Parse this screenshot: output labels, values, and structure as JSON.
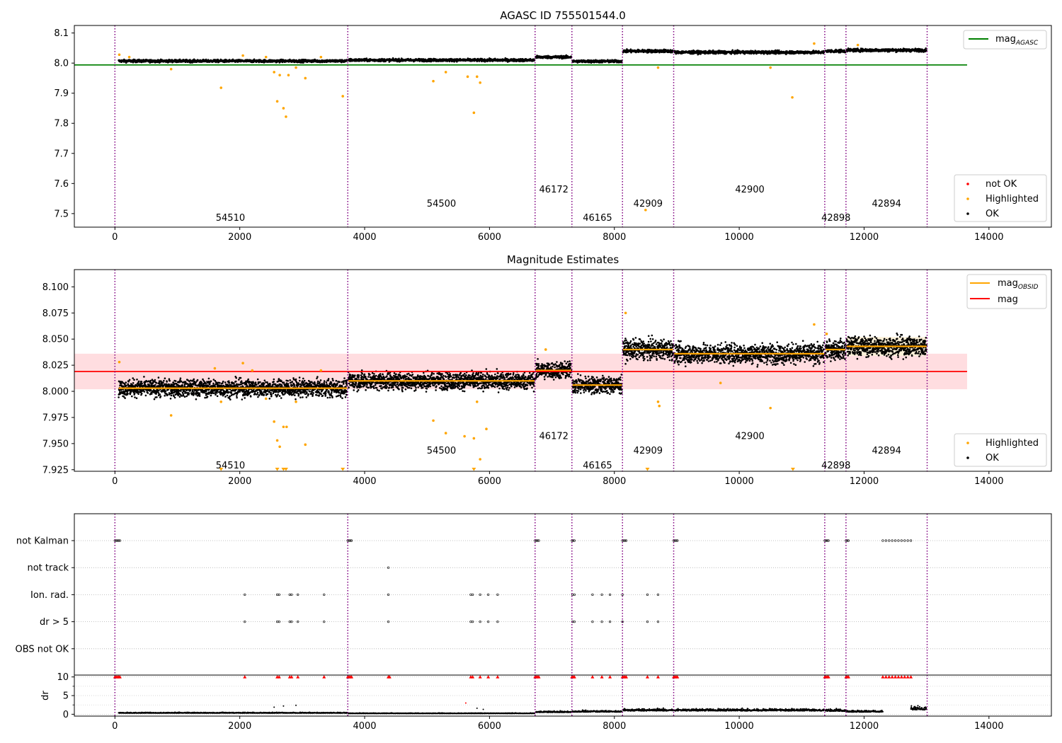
{
  "chart_data": [
    {
      "type": "scatter",
      "title": "AGASC ID 755501544.0",
      "xlabel": "",
      "ylabel": "",
      "xlim": [
        -650,
        15000
      ],
      "ylim": [
        7.455,
        8.125
      ],
      "xticks": [
        0,
        2000,
        4000,
        6000,
        8000,
        10000,
        12000,
        14000
      ],
      "xtick_labels": [
        "0",
        "2000",
        "4000",
        "6000",
        "8000",
        "10000",
        "12000",
        "14000"
      ],
      "yticks": [
        7.5,
        7.6,
        7.7,
        7.8,
        7.9,
        8.0,
        8.1
      ],
      "ytick_labels": [
        "7.5",
        "7.6",
        "7.7",
        "7.8",
        "7.9",
        "8.0",
        "8.1"
      ],
      "obs_boundaries": [
        0,
        3730,
        6730,
        7320,
        8130,
        8950,
        11370,
        11710,
        13010
      ],
      "observations": [
        {
          "obsid": "54510",
          "x0": 60,
          "x1": 3720,
          "level": 8.003,
          "spread": 0.008,
          "label_x": 1850,
          "label_y": 7.485
        },
        {
          "obsid": "54500",
          "x0": 3740,
          "x1": 6720,
          "level": 8.01,
          "spread": 0.008,
          "label_x": 5230,
          "label_y": 7.533
        },
        {
          "obsid": "46172",
          "x0": 6740,
          "x1": 7310,
          "level": 8.02,
          "spread": 0.008,
          "label_x": 7030,
          "label_y": 7.58
        },
        {
          "obsid": "46165",
          "x0": 7330,
          "x1": 8120,
          "level": 8.006,
          "spread": 0.008,
          "label_x": 7730,
          "label_y": 7.485
        },
        {
          "obsid": "42909",
          "x0": 8140,
          "x1": 8940,
          "level": 8.04,
          "spread": 0.009,
          "label_x": 8540,
          "label_y": 7.533
        },
        {
          "obsid": "42900",
          "x0": 8960,
          "x1": 11360,
          "level": 8.036,
          "spread": 0.009,
          "label_x": 10170,
          "label_y": 7.58
        },
        {
          "obsid": "42898",
          "x0": 11380,
          "x1": 11700,
          "level": 8.04,
          "spread": 0.009,
          "label_x": 11550,
          "label_y": 7.485
        },
        {
          "obsid": "42894",
          "x0": 11720,
          "x1": 13000,
          "level": 8.043,
          "spread": 0.009,
          "label_x": 12360,
          "label_y": 7.533
        }
      ],
      "series": [
        {
          "name": "mag_AGASC",
          "type": "line",
          "color": "#008000",
          "x": [
            -650,
            13650
          ],
          "y": [
            7.994,
            7.994
          ]
        },
        {
          "name": "not OK",
          "type": "scatter",
          "color": "#ff0000",
          "x": [],
          "y": []
        },
        {
          "name": "Highlighted",
          "type": "scatter",
          "color": "#ffa500",
          "x": [
            70,
            230,
            900,
            1700,
            2050,
            2420,
            2550,
            2600,
            2640,
            2700,
            2740,
            2780,
            2900,
            3050,
            3300,
            3650,
            5100,
            5300,
            5650,
            5750,
            5800,
            5850,
            8500,
            8700,
            10500,
            10850,
            11900,
            11200
          ],
          "y": [
            8.028,
            8.02,
            7.98,
            7.918,
            8.025,
            8.02,
            7.97,
            7.873,
            7.96,
            7.85,
            7.822,
            7.96,
            7.985,
            7.95,
            8.02,
            7.89,
            7.94,
            7.97,
            7.955,
            7.835,
            7.955,
            7.935,
            7.512,
            7.985,
            7.985,
            7.886,
            8.06,
            8.065
          ]
        },
        {
          "name": "OK",
          "type": "scatter",
          "color": "#000000",
          "x": [],
          "y": []
        }
      ],
      "legend_top": [
        {
          "label": "mag",
          "sub": "AGASC",
          "color": "#008000"
        }
      ],
      "legend_bottom": [
        {
          "label": "not OK",
          "color": "#ff0000"
        },
        {
          "label": "Highlighted",
          "color": "#ffa500"
        },
        {
          "label": "OK",
          "color": "#000000"
        }
      ],
      "legend_top_position": "upper right",
      "legend_bottom_position": "lower right"
    },
    {
      "type": "scatter",
      "title": "Magnitude Estimates",
      "xlabel": "",
      "ylabel": "",
      "xlim": [
        -650,
        15000
      ],
      "ylim": [
        7.9235,
        8.1165
      ],
      "xticks": [
        0,
        2000,
        4000,
        6000,
        8000,
        10000,
        12000,
        14000
      ],
      "xtick_labels": [
        "0",
        "2000",
        "4000",
        "6000",
        "8000",
        "10000",
        "12000",
        "14000"
      ],
      "yticks": [
        7.925,
        7.95,
        7.975,
        8.0,
        8.025,
        8.05,
        8.075,
        8.1
      ],
      "ytick_labels": [
        "7.925",
        "7.950",
        "7.975",
        "8.000",
        "8.025",
        "8.050",
        "8.075",
        "8.100"
      ],
      "obs_label_y": {
        "54510": 7.929,
        "54500": 7.943,
        "46172": 7.957,
        "46165": 7.929,
        "42909": 7.943,
        "42900": 7.957,
        "42898": 7.929,
        "42894": 7.943
      },
      "mag": {
        "value": 8.019,
        "x0": -650,
        "x1": 13650,
        "band": [
          8.002,
          8.036
        ],
        "color": "#ff0000",
        "band_color": "#ffdde0"
      },
      "mag_obsid_bands": [
        {
          "x0": 11720,
          "x1": 13000,
          "band": [
            8.034,
            8.052
          ],
          "color": "#fbf0d8"
        }
      ],
      "highlighted": {
        "color": "#ffa500",
        "x": [
          70,
          900,
          1600,
          1700,
          2050,
          2200,
          2420,
          2550,
          2600,
          2640,
          2700,
          2750,
          2900,
          3050,
          3300,
          5100,
          5300,
          5600,
          5750,
          5800,
          5850,
          5950,
          6900,
          8180,
          8700,
          8720,
          9700,
          10500,
          11200,
          11400
        ],
        "y": [
          8.028,
          7.977,
          8.022,
          7.99,
          8.027,
          8.02,
          7.993,
          7.971,
          7.953,
          7.947,
          7.966,
          7.966,
          7.99,
          7.949,
          8.02,
          7.972,
          7.96,
          7.957,
          7.955,
          7.99,
          7.935,
          7.964,
          8.04,
          8.075,
          7.99,
          7.986,
          8.008,
          7.984,
          8.064,
          8.055
        ]
      },
      "clipped_markers": {
        "color": "#ffa500",
        "x": [
          1700,
          2600,
          2700,
          2740,
          3650,
          5750,
          8530,
          10860
        ]
      },
      "legend_top": [
        {
          "label": "mag",
          "sub": "OBSID",
          "color": "#ffa500"
        },
        {
          "label": "mag",
          "sub": "",
          "color": "#ff0000"
        }
      ],
      "legend_bottom": [
        {
          "label": "Highlighted",
          "color": "#ffa500"
        },
        {
          "label": "OK",
          "color": "#000000"
        }
      ],
      "legend_top_position": "upper right",
      "legend_bottom_position": "lower right"
    },
    {
      "type": "scatter",
      "title": "",
      "xlabel": "",
      "ylabel": "",
      "xlim": [
        -650,
        15000
      ],
      "flag_rows": [
        "not Kalman",
        "not track",
        "Ion. rad.",
        "dr > 5",
        "OBS not OK"
      ],
      "flag_events": [
        {
          "row": "not Kalman",
          "x": [
            0,
            20,
            40,
            60,
            80,
            3730,
            3750,
            3770,
            3790,
            6730,
            6750,
            6770,
            6790,
            7320,
            7340,
            7360,
            8130,
            8150,
            8170,
            8190,
            8950,
            8970,
            8990,
            9010,
            11370,
            11390,
            11410,
            11430,
            11710,
            11730,
            11750,
            12300,
            12350,
            12400,
            12450,
            12500,
            12550,
            12600,
            12650,
            12700,
            12750
          ]
        },
        {
          "row": "not track",
          "x": [
            4380
          ]
        },
        {
          "row": "Ion. rad.",
          "x": [
            2080,
            2600,
            2630,
            2800,
            2830,
            2930,
            3350,
            4380,
            5700,
            5730,
            5850,
            5980,
            6130,
            7330,
            7360,
            7650,
            7800,
            7930,
            8130,
            8530,
            8700
          ]
        },
        {
          "row": "dr > 5",
          "x": [
            2080,
            2600,
            2630,
            2800,
            2830,
            2930,
            3350,
            4380,
            5700,
            5730,
            5850,
            5980,
            6130,
            7330,
            7360,
            7650,
            7800,
            7930,
            8130,
            8530,
            8700
          ]
        }
      ],
      "gridlines": "dotted"
    },
    {
      "type": "scatter",
      "title": "",
      "xlabel": "",
      "ylabel": "dr",
      "xlim": [
        -650,
        15000
      ],
      "ylim": [
        -0.5,
        10.5
      ],
      "yticks": [
        0,
        5,
        10
      ],
      "ytick_labels": [
        "0",
        "5",
        "10"
      ],
      "xticks": [
        0,
        2000,
        4000,
        6000,
        8000,
        10000,
        12000,
        14000
      ],
      "xtick_labels": [
        "0",
        "2000",
        "4000",
        "6000",
        "8000",
        "10000",
        "12000",
        "14000"
      ],
      "segments": [
        {
          "x0": 60,
          "x1": 3720,
          "dr": 0.3
        },
        {
          "x0": 3740,
          "x1": 6720,
          "dr": 0.2
        },
        {
          "x0": 6740,
          "x1": 7310,
          "dr": 0.5
        },
        {
          "x0": 7330,
          "x1": 8120,
          "dr": 0.6
        },
        {
          "x0": 8140,
          "x1": 8940,
          "dr": 0.9
        },
        {
          "x0": 8960,
          "x1": 11360,
          "dr": 0.9
        },
        {
          "x0": 11380,
          "x1": 11700,
          "dr": 0.8
        },
        {
          "x0": 11720,
          "x1": 12300,
          "dr": 0.6
        },
        {
          "x0": 12750,
          "x1": 13000,
          "dr": 1.2
        }
      ],
      "outliers": {
        "x": [
          5620,
          2550,
          2700,
          2900,
          5800,
          5900
        ],
        "y": [
          3.0,
          1.9,
          2.2,
          2.4,
          1.6,
          1.3
        ]
      },
      "clipped_red_markers": {
        "color": "#ff0000",
        "x": [
          0,
          20,
          40,
          60,
          80,
          2080,
          2600,
          2630,
          2800,
          2830,
          2930,
          3350,
          3730,
          3750,
          3770,
          3790,
          4380,
          4400,
          5700,
          5730,
          5850,
          5980,
          6130,
          6730,
          6750,
          6770,
          6790,
          7320,
          7340,
          7360,
          7650,
          7800,
          7930,
          8130,
          8150,
          8170,
          8190,
          8530,
          8700,
          8950,
          8970,
          8990,
          9010,
          11370,
          11390,
          11410,
          11430,
          11710,
          11730,
          11750,
          12300,
          12350,
          12400,
          12450,
          12500,
          12550,
          12600,
          12650,
          12700,
          12750
        ]
      }
    }
  ]
}
